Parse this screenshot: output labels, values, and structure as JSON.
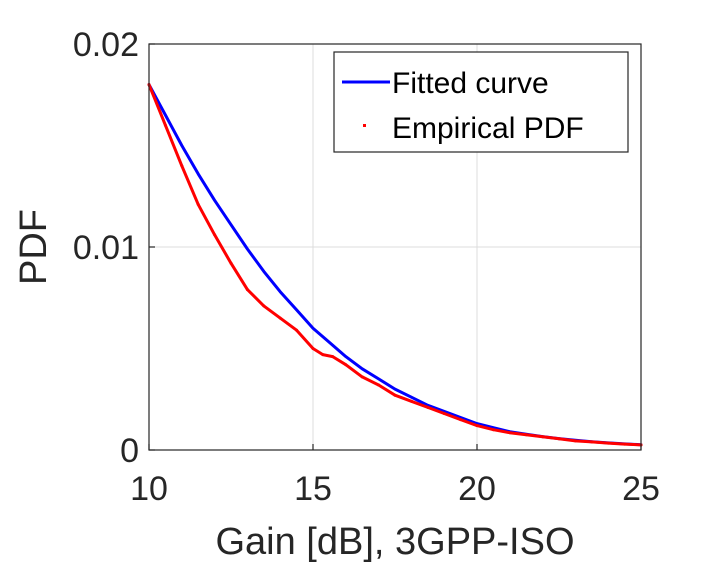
{
  "chart_data": {
    "type": "line",
    "title": "",
    "xlabel": "Gain [dB], 3GPP-ISO",
    "ylabel": "PDF",
    "xlim": [
      10,
      25
    ],
    "ylim": [
      0,
      0.02
    ],
    "xticks": [
      10,
      15,
      20,
      25
    ],
    "xtick_labels": [
      "10",
      "15",
      "20",
      "25"
    ],
    "yticks": [
      0,
      0.01,
      0.02
    ],
    "ytick_labels": [
      "0",
      "0.01",
      "0.02"
    ],
    "grid": true,
    "legend_position": "top-right",
    "series": [
      {
        "name": "Fitted curve",
        "color": "#0000ff",
        "style": "line",
        "x": [
          10,
          10.5,
          11,
          11.5,
          12,
          12.5,
          13,
          13.5,
          14,
          14.5,
          15,
          15.5,
          16,
          16.5,
          17,
          17.5,
          18,
          18.5,
          19,
          19.5,
          20,
          20.5,
          21,
          21.5,
          22,
          22.5,
          23,
          23.5,
          24,
          24.5,
          25
        ],
        "values": [
          0.018,
          0.0165,
          0.015,
          0.0136,
          0.0123,
          0.0111,
          0.0099,
          0.0088,
          0.0078,
          0.0069,
          0.006,
          0.0053,
          0.0046,
          0.004,
          0.0035,
          0.003,
          0.0026,
          0.0022,
          0.0019,
          0.0016,
          0.0013,
          0.0011,
          0.0009,
          0.00078,
          0.00066,
          0.00056,
          0.00048,
          0.00041,
          0.00035,
          0.0003,
          0.00026
        ]
      },
      {
        "name": "Empirical PDF",
        "color": "#ff0000",
        "style": "points",
        "x": [
          10,
          10.5,
          11,
          11.5,
          12,
          12.5,
          13,
          13.5,
          14,
          14.5,
          15,
          15.3,
          15.6,
          16,
          16.5,
          17,
          17.5,
          18,
          18.5,
          19,
          19.5,
          20,
          20.5,
          21,
          21.5,
          22,
          22.5,
          23,
          23.5,
          24,
          24.5,
          25
        ],
        "values": [
          0.018,
          0.016,
          0.014,
          0.0121,
          0.0106,
          0.0092,
          0.0079,
          0.0071,
          0.0065,
          0.0059,
          0.005,
          0.0047,
          0.0046,
          0.0042,
          0.0036,
          0.0032,
          0.0027,
          0.0024,
          0.0021,
          0.0018,
          0.0015,
          0.0012,
          0.001,
          0.00085,
          0.00075,
          0.00065,
          0.00055,
          0.00045,
          0.0004,
          0.00034,
          0.00029,
          0.00025
        ]
      }
    ]
  }
}
